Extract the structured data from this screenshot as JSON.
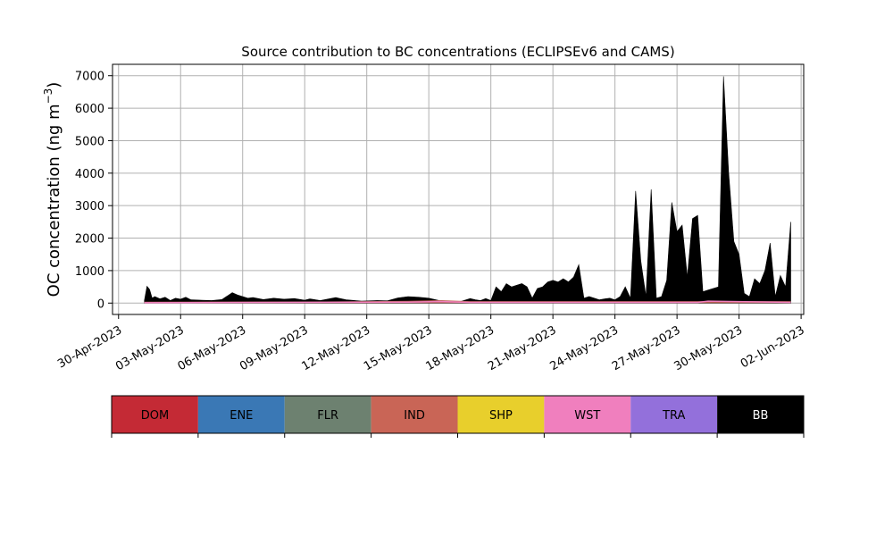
{
  "chart_data": {
    "type": "area",
    "title": "Source contribution to BC concentrations (ECLIPSEv6 and CAMS)",
    "ylabel": "OC concentration (ng m",
    "ylabel_exp": "−3",
    "ylabel_end": ")",
    "xlabel": "",
    "x_start": "2023-04-29",
    "x_end": "2023-06-03",
    "xlim": [
      "2023-04-29T17:00",
      "2023-06-02T03:00"
    ],
    "ylim": [
      -350,
      7350
    ],
    "yticks": [
      0,
      1000,
      2000,
      3000,
      4000,
      5000,
      6000,
      7000
    ],
    "xtick_labels": [
      "30-Apr-2023",
      "03-May-2023",
      "06-May-2023",
      "09-May-2023",
      "12-May-2023",
      "15-May-2023",
      "18-May-2023",
      "21-May-2023",
      "24-May-2023",
      "27-May-2023",
      "30-May-2023",
      "02-Jun-2023"
    ],
    "xtick_dates": [
      "2023-04-30",
      "2023-05-03",
      "2023-05-06",
      "2023-05-09",
      "2023-05-12",
      "2023-05-15",
      "2023-05-18",
      "2023-05-21",
      "2023-05-24",
      "2023-05-27",
      "2023-05-30",
      "2023-06-02"
    ],
    "grid": true,
    "legend_position": "bottom",
    "series": [
      {
        "name": "DOM",
        "color": "#c42a35"
      },
      {
        "name": "ENE",
        "color": "#3a78b5"
      },
      {
        "name": "FLR",
        "color": "#6d8170"
      },
      {
        "name": "IND",
        "color": "#c96556"
      },
      {
        "name": "SHP",
        "color": "#e8cf2c"
      },
      {
        "name": "WST",
        "color": "#f07fbe"
      },
      {
        "name": "TRA",
        "color": "#9370db"
      },
      {
        "name": "BB",
        "color": "#000000"
      }
    ],
    "bb_series": {
      "name": "BB",
      "x": [
        "2023-05-01T06:00",
        "2023-05-01T09:00",
        "2023-05-01T12:00",
        "2023-05-01T15:00",
        "2023-05-01T18:00",
        "2023-05-02T00:00",
        "2023-05-02T06:00",
        "2023-05-02T12:00",
        "2023-05-02T18:00",
        "2023-05-03T00:00",
        "2023-05-03T06:00",
        "2023-05-03T12:00",
        "2023-05-04T00:00",
        "2023-05-04T12:00",
        "2023-05-05T00:00",
        "2023-05-05T12:00",
        "2023-05-05T18:00",
        "2023-05-06T06:00",
        "2023-05-06T12:00",
        "2023-05-07T00:00",
        "2023-05-07T12:00",
        "2023-05-08T00:00",
        "2023-05-08T12:00",
        "2023-05-09T00:00",
        "2023-05-09T06:00",
        "2023-05-09T18:00",
        "2023-05-10T12:00",
        "2023-05-11T00:00",
        "2023-05-11T18:00",
        "2023-05-12T12:00",
        "2023-05-13T00:00",
        "2023-05-13T12:00",
        "2023-05-14T00:00",
        "2023-05-14T12:00",
        "2023-05-15T00:00",
        "2023-05-15T12:00",
        "2023-05-16T00:00",
        "2023-05-16T12:00",
        "2023-05-17T00:00",
        "2023-05-17T06:00",
        "2023-05-17T12:00",
        "2023-05-17T18:00",
        "2023-05-18T00:00",
        "2023-05-18T06:00",
        "2023-05-18T12:00",
        "2023-05-18T18:00",
        "2023-05-19T00:00",
        "2023-05-19T06:00",
        "2023-05-19T12:00",
        "2023-05-19T18:00",
        "2023-05-20T00:00",
        "2023-05-20T06:00",
        "2023-05-20T12:00",
        "2023-05-20T18:00",
        "2023-05-21T00:00",
        "2023-05-21T06:00",
        "2023-05-21T12:00",
        "2023-05-21T18:00",
        "2023-05-22T00:00",
        "2023-05-22T06:00",
        "2023-05-22T12:00",
        "2023-05-22T18:00",
        "2023-05-23T00:00",
        "2023-05-23T06:00",
        "2023-05-23T12:00",
        "2023-05-23T18:00",
        "2023-05-24T00:00",
        "2023-05-24T06:00",
        "2023-05-24T12:00",
        "2023-05-24T18:00",
        "2023-05-25T00:00",
        "2023-05-25T06:00",
        "2023-05-25T12:00",
        "2023-05-25T18:00",
        "2023-05-26T00:00",
        "2023-05-26T06:00",
        "2023-05-26T12:00",
        "2023-05-26T18:00",
        "2023-05-27T00:00",
        "2023-05-27T06:00",
        "2023-05-27T12:00",
        "2023-05-27T18:00",
        "2023-05-28T00:00",
        "2023-05-28T06:00",
        "2023-05-28T12:00",
        "2023-05-28T18:00",
        "2023-05-29T00:00",
        "2023-05-29T06:00",
        "2023-05-29T12:00",
        "2023-05-29T18:00",
        "2023-05-30T00:00",
        "2023-05-30T06:00",
        "2023-05-30T12:00",
        "2023-05-30T18:00",
        "2023-05-31T00:00",
        "2023-05-31T06:00",
        "2023-05-31T12:00",
        "2023-05-31T18:00",
        "2023-06-01T00:00",
        "2023-06-01T06:00",
        "2023-06-01T12:00"
      ],
      "values": [
        80,
        520,
        420,
        150,
        200,
        130,
        180,
        80,
        150,
        120,
        180,
        100,
        90,
        80,
        110,
        320,
        250,
        150,
        170,
        110,
        150,
        120,
        140,
        90,
        130,
        80,
        170,
        100,
        60,
        80,
        70,
        160,
        200,
        180,
        150,
        80,
        60,
        40,
        140,
        100,
        80,
        140,
        80,
        500,
        350,
        600,
        500,
        550,
        600,
        500,
        150,
        450,
        500,
        650,
        700,
        650,
        750,
        650,
        800,
        1180,
        150,
        200,
        150,
        100,
        130,
        150,
        100,
        200,
        500,
        150,
        3450,
        1300,
        200,
        3500,
        150,
        200,
        700,
        3100,
        2200,
        2400,
        800,
        2600,
        2700,
        350,
        400,
        450,
        500,
        6980,
        4000,
        1900,
        1500,
        300,
        200,
        750,
        600,
        1000,
        1850,
        200,
        850,
        500,
        2500
      ]
    },
    "bottom_series": {
      "name": "DOM",
      "x": [
        "2023-05-01T06:00",
        "2023-05-10T00:00",
        "2023-05-14T00:00",
        "2023-05-15T12:00",
        "2023-05-17T00:00",
        "2023-05-24T00:00",
        "2023-06-01T12:00"
      ],
      "values": [
        40,
        50,
        70,
        90,
        60,
        60,
        60
      ]
    },
    "wst_series": {
      "name": "WST",
      "x": [
        "2023-05-01T06:00",
        "2023-05-14T00:00",
        "2023-05-15T12:00",
        "2023-05-17T00:00",
        "2023-05-28T00:00",
        "2023-05-28T12:00",
        "2023-06-01T12:00"
      ],
      "values": [
        10,
        30,
        50,
        20,
        20,
        60,
        20
      ]
    }
  }
}
